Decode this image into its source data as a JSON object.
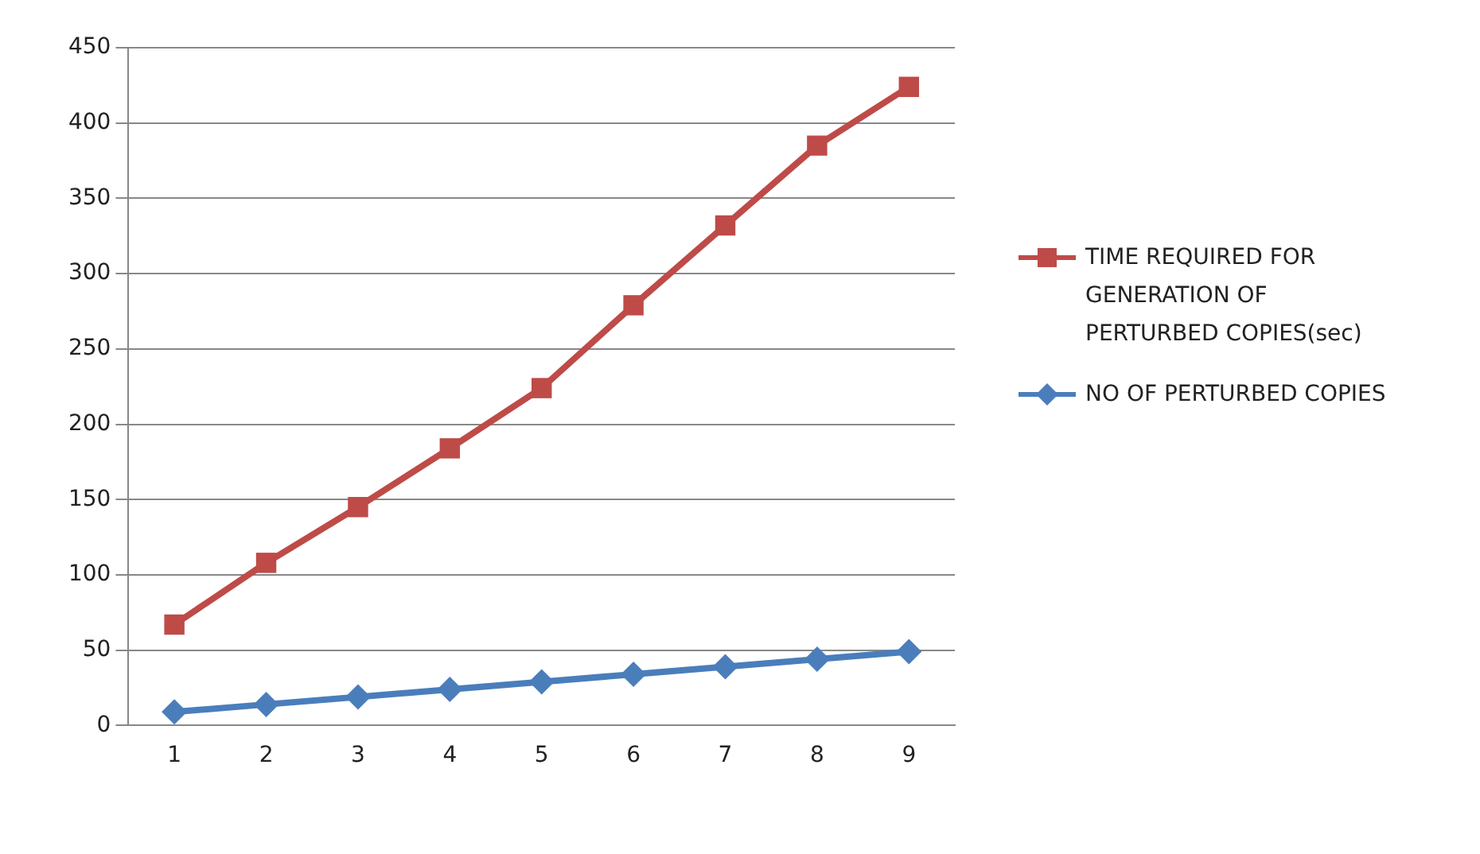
{
  "chart_data": {
    "type": "line",
    "categories": [
      "1",
      "2",
      "3",
      "4",
      "5",
      "6",
      "7",
      "8",
      "9"
    ],
    "series": [
      {
        "name": "TIME REQUIRED FOR GENERATION OF PERTURBED COPIES(sec)",
        "color": "#be4b48",
        "marker": "square",
        "values": [
          67,
          108,
          145,
          184,
          224,
          279,
          332,
          385,
          424
        ]
      },
      {
        "name": "NO OF PERTURBED COPIES",
        "color": "#4a7ebb",
        "marker": "diamond",
        "values": [
          9,
          14,
          19,
          24,
          29,
          34,
          39,
          44,
          49
        ]
      }
    ],
    "ylim": [
      0,
      450
    ],
    "yticks": [
      0,
      50,
      100,
      150,
      200,
      250,
      300,
      350,
      400,
      450
    ],
    "grid": "y",
    "legend": "right"
  }
}
